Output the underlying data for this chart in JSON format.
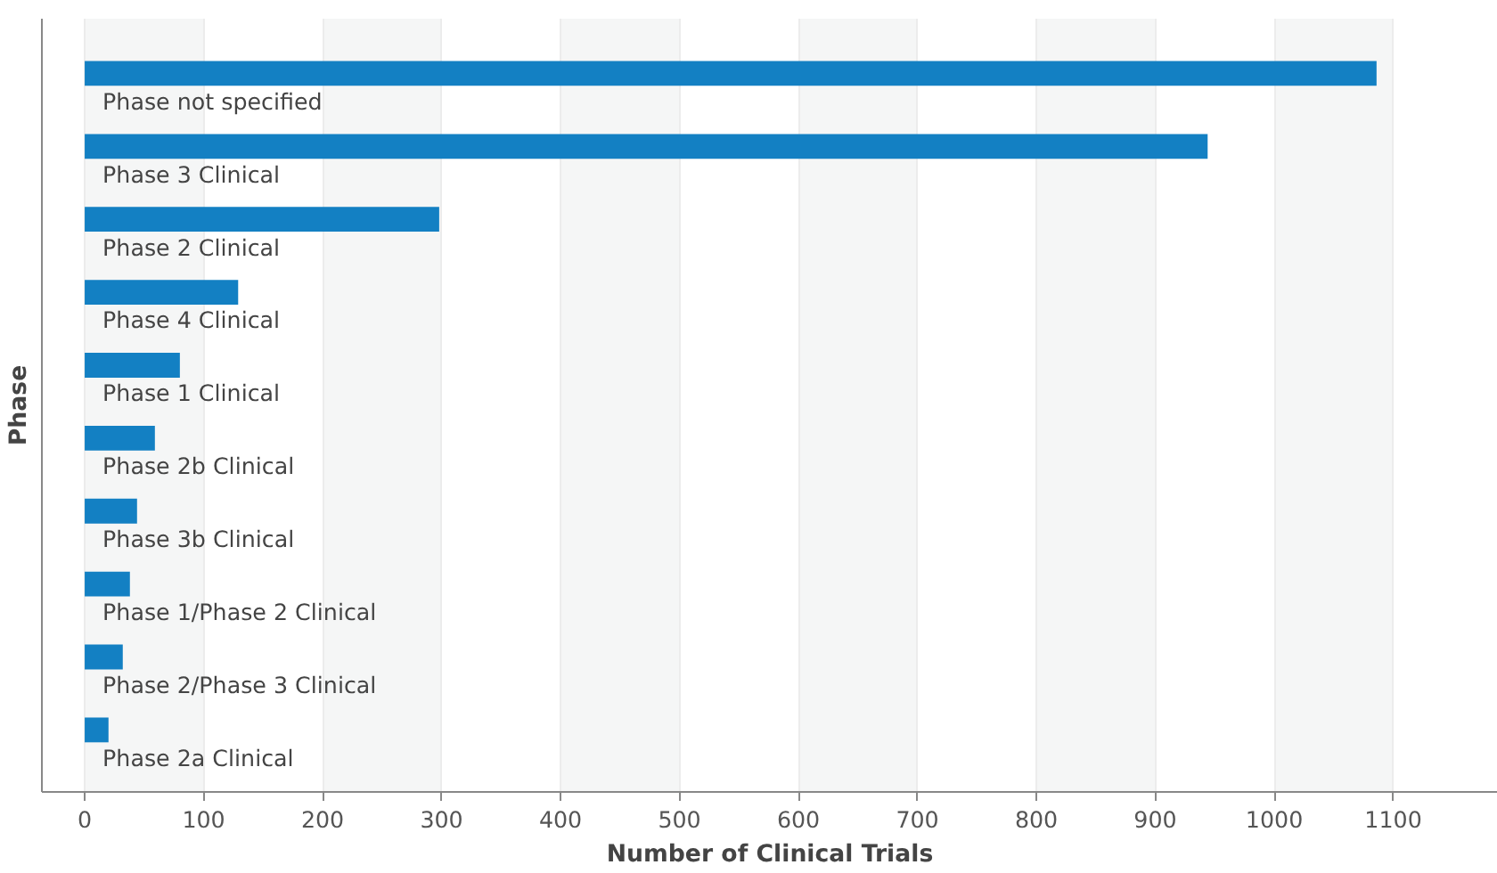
{
  "chart_data": {
    "type": "bar",
    "orientation": "horizontal",
    "xlabel": "Number of Clinical Trials",
    "ylabel": "Phase",
    "categories": [
      "Phase not specified",
      "Phase 3 Clinical",
      "Phase 2 Clinical",
      "Phase 4 Clinical",
      "Phase 1 Clinical",
      "Phase 2b Clinical",
      "Phase 3b Clinical",
      "Phase 1/Phase 2 Clinical",
      "Phase 2/Phase 3 Clinical",
      "Phase 2a Clinical"
    ],
    "values": [
      1086,
      944,
      298,
      129,
      80,
      59,
      44,
      38,
      32,
      20
    ],
    "color": "#1380c3",
    "xlim": [
      -36,
      1188
    ],
    "xticks": [
      0,
      100,
      200,
      300,
      400,
      500,
      600,
      700,
      800,
      900,
      1000,
      1100
    ],
    "grid": "x"
  }
}
